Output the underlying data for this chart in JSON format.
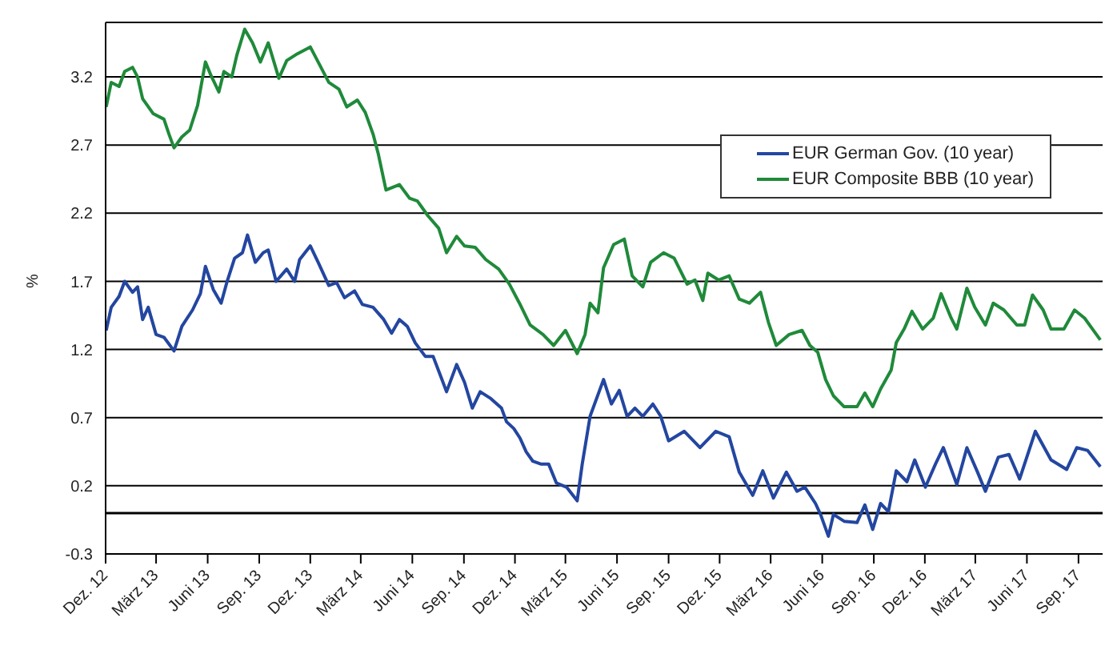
{
  "chart_data": {
    "type": "line",
    "ylabel": "%",
    "xlim": [
      "2012-12-01",
      "2017-10-14"
    ],
    "ylim": [
      -0.3,
      3.6
    ],
    "yticks": [
      -0.3,
      0.2,
      0.7,
      1.2,
      1.7,
      2.2,
      2.7,
      3.2
    ],
    "xticks": [
      {
        "value": "2012-12-01",
        "label": "Dez. 12"
      },
      {
        "value": "2013-03-01",
        "label": "März 13"
      },
      {
        "value": "2013-06-01",
        "label": "Juni 13"
      },
      {
        "value": "2013-09-01",
        "label": "Sep. 13"
      },
      {
        "value": "2013-12-01",
        "label": "Dez. 13"
      },
      {
        "value": "2014-03-01",
        "label": "März 14"
      },
      {
        "value": "2014-06-01",
        "label": "Juni 14"
      },
      {
        "value": "2014-09-01",
        "label": "Sep. 14"
      },
      {
        "value": "2014-12-01",
        "label": "Dez. 14"
      },
      {
        "value": "2015-03-01",
        "label": "März 15"
      },
      {
        "value": "2015-06-01",
        "label": "Juni 15"
      },
      {
        "value": "2015-09-01",
        "label": "Sep. 15"
      },
      {
        "value": "2015-12-01",
        "label": "Dez. 15"
      },
      {
        "value": "2016-03-01",
        "label": "März 16"
      },
      {
        "value": "2016-06-01",
        "label": "Juni 16"
      },
      {
        "value": "2016-09-01",
        "label": "Sep. 16"
      },
      {
        "value": "2016-12-01",
        "label": "Dez. 16"
      },
      {
        "value": "2017-03-01",
        "label": "März 17"
      },
      {
        "value": "2017-06-01",
        "label": "Juni 17"
      },
      {
        "value": "2017-09-01",
        "label": "Sep. 17"
      }
    ],
    "grid": "y",
    "legend": "top right",
    "marker": "none",
    "line_style": "solid",
    "ref_lines": [
      {
        "axis": "y",
        "value": 0,
        "color": "#000000"
      }
    ],
    "series": [
      {
        "name": "EUR German Gov. (10 year)",
        "color": "#2346a0",
        "x": [
          "2012-12-02",
          "2012-12-11",
          "2012-12-25",
          "2013-01-04",
          "2013-01-18",
          "2013-01-27",
          "2013-02-05",
          "2013-02-15",
          "2013-03-01",
          "2013-03-15",
          "2013-04-02",
          "2013-04-16",
          "2013-05-05",
          "2013-05-19",
          "2013-05-28",
          "2013-06-11",
          "2013-06-25",
          "2013-07-05",
          "2013-07-19",
          "2013-08-02",
          "2013-08-11",
          "2013-08-25",
          "2013-09-08",
          "2013-09-17",
          "2013-10-01",
          "2013-10-20",
          "2013-11-03",
          "2013-11-12",
          "2013-12-01",
          "2013-12-15",
          "2014-01-03",
          "2014-01-17",
          "2014-01-31",
          "2014-02-18",
          "2014-03-04",
          "2014-03-23",
          "2014-04-11",
          "2014-04-25",
          "2014-05-09",
          "2014-05-23",
          "2014-06-06",
          "2014-06-24",
          "2014-07-08",
          "2014-07-22",
          "2014-08-01",
          "2014-08-19",
          "2014-09-02",
          "2014-09-16",
          "2014-09-30",
          "2014-10-19",
          "2014-11-07",
          "2014-11-16",
          "2014-11-29",
          "2014-12-10",
          "2014-12-21",
          "2015-01-02",
          "2015-01-16",
          "2015-01-30",
          "2015-02-13",
          "2015-03-03",
          "2015-03-22",
          "2015-03-31",
          "2015-04-14",
          "2015-05-08",
          "2015-05-22",
          "2015-06-05",
          "2015-06-19",
          "2015-07-03",
          "2015-07-17",
          "2015-08-04",
          "2015-08-18",
          "2015-09-01",
          "2015-09-29",
          "2015-10-27",
          "2015-11-24",
          "2015-12-18",
          "2016-01-05",
          "2016-01-29",
          "2016-02-16",
          "2016-03-06",
          "2016-03-29",
          "2016-04-17",
          "2016-05-01",
          "2016-05-20",
          "2016-05-29",
          "2016-06-12",
          "2016-06-21",
          "2016-07-10",
          "2016-08-02",
          "2016-08-16",
          "2016-08-30",
          "2016-09-13",
          "2016-09-27",
          "2016-10-11",
          "2016-10-30",
          "2016-11-13",
          "2016-12-02",
          "2016-12-20",
          "2017-01-03",
          "2017-01-27",
          "2017-02-14",
          "2017-03-05",
          "2017-03-19",
          "2017-04-11",
          "2017-04-30",
          "2017-05-19",
          "2017-06-16",
          "2017-07-14",
          "2017-08-11",
          "2017-08-29",
          "2017-09-17",
          "2017-10-10"
        ],
        "values": [
          1.34,
          1.51,
          1.59,
          1.7,
          1.62,
          1.66,
          1.42,
          1.51,
          1.31,
          1.29,
          1.19,
          1.37,
          1.49,
          1.61,
          1.81,
          1.64,
          1.54,
          1.69,
          1.87,
          1.91,
          2.04,
          1.84,
          1.91,
          1.93,
          1.7,
          1.79,
          1.7,
          1.86,
          1.96,
          1.84,
          1.67,
          1.69,
          1.58,
          1.63,
          1.53,
          1.51,
          1.42,
          1.32,
          1.42,
          1.37,
          1.25,
          1.15,
          1.15,
          1.0,
          0.89,
          1.09,
          0.96,
          0.77,
          0.89,
          0.84,
          0.77,
          0.67,
          0.62,
          0.55,
          0.45,
          0.38,
          0.36,
          0.36,
          0.22,
          0.19,
          0.09,
          0.36,
          0.71,
          0.98,
          0.8,
          0.9,
          0.71,
          0.77,
          0.71,
          0.8,
          0.71,
          0.53,
          0.6,
          0.48,
          0.6,
          0.56,
          0.3,
          0.13,
          0.31,
          0.11,
          0.3,
          0.16,
          0.19,
          0.07,
          -0.01,
          -0.17,
          -0.01,
          -0.06,
          -0.07,
          0.06,
          -0.12,
          0.07,
          0.01,
          0.31,
          0.23,
          0.39,
          0.19,
          0.36,
          0.48,
          0.21,
          0.48,
          0.3,
          0.16,
          0.41,
          0.43,
          0.25,
          0.6,
          0.39,
          0.32,
          0.48,
          0.46,
          0.34
        ]
      },
      {
        "name": "EUR Composite BBB (10 year)",
        "color": "#1f8a3a",
        "x": [
          "2012-12-02",
          "2012-12-11",
          "2012-12-25",
          "2013-01-04",
          "2013-01-18",
          "2013-01-27",
          "2013-02-05",
          "2013-02-24",
          "2013-03-15",
          "2013-03-24",
          "2013-04-02",
          "2013-04-16",
          "2013-04-30",
          "2013-05-14",
          "2013-05-28",
          "2013-06-07",
          "2013-06-21",
          "2013-06-30",
          "2013-07-14",
          "2013-07-23",
          "2013-08-06",
          "2013-08-20",
          "2013-09-03",
          "2013-09-17",
          "2013-10-06",
          "2013-10-20",
          "2013-11-08",
          "2013-12-01",
          "2013-12-15",
          "2014-01-03",
          "2014-01-21",
          "2014-02-04",
          "2014-02-23",
          "2014-03-09",
          "2014-03-23",
          "2014-04-01",
          "2014-04-15",
          "2014-05-09",
          "2014-05-27",
          "2014-06-10",
          "2014-06-29",
          "2014-07-18",
          "2014-08-01",
          "2014-08-19",
          "2014-09-02",
          "2014-09-21",
          "2014-10-10",
          "2014-11-02",
          "2014-11-21",
          "2014-12-09",
          "2014-12-28",
          "2015-01-20",
          "2015-02-08",
          "2015-03-01",
          "2015-03-22",
          "2015-04-05",
          "2015-04-14",
          "2015-04-28",
          "2015-05-08",
          "2015-05-26",
          "2015-06-14",
          "2015-06-28",
          "2015-07-17",
          "2015-07-31",
          "2015-08-23",
          "2015-09-11",
          "2015-10-04",
          "2015-10-18",
          "2015-11-01",
          "2015-11-10",
          "2015-11-29",
          "2015-12-18",
          "2016-01-05",
          "2016-01-23",
          "2016-02-12",
          "2016-02-26",
          "2016-03-11",
          "2016-04-03",
          "2016-04-26",
          "2016-05-10",
          "2016-05-24",
          "2016-06-07",
          "2016-06-21",
          "2016-07-10",
          "2016-08-02",
          "2016-08-16",
          "2016-08-30",
          "2016-09-13",
          "2016-10-02",
          "2016-10-11",
          "2016-10-25",
          "2016-11-08",
          "2016-11-27",
          "2016-12-16",
          "2016-12-30",
          "2017-01-17",
          "2017-01-27",
          "2017-02-14",
          "2017-02-28",
          "2017-03-19",
          "2017-04-02",
          "2017-04-21",
          "2017-05-14",
          "2017-05-28",
          "2017-06-11",
          "2017-06-30",
          "2017-07-14",
          "2017-08-06",
          "2017-08-25",
          "2017-09-12",
          "2017-09-26",
          "2017-10-10"
        ],
        "values": [
          2.98,
          3.16,
          3.13,
          3.24,
          3.27,
          3.2,
          3.04,
          2.93,
          2.89,
          2.78,
          2.68,
          2.76,
          2.81,
          2.99,
          3.31,
          3.21,
          3.09,
          3.24,
          3.2,
          3.36,
          3.55,
          3.45,
          3.31,
          3.45,
          3.19,
          3.32,
          3.37,
          3.42,
          3.31,
          3.16,
          3.11,
          2.98,
          3.03,
          2.94,
          2.78,
          2.64,
          2.37,
          2.41,
          2.31,
          2.29,
          2.18,
          2.09,
          1.91,
          2.03,
          1.96,
          1.95,
          1.86,
          1.79,
          1.68,
          1.54,
          1.38,
          1.31,
          1.23,
          1.34,
          1.17,
          1.31,
          1.54,
          1.47,
          1.8,
          1.97,
          2.01,
          1.74,
          1.66,
          1.84,
          1.91,
          1.87,
          1.68,
          1.71,
          1.56,
          1.76,
          1.71,
          1.74,
          1.57,
          1.54,
          1.62,
          1.4,
          1.23,
          1.31,
          1.34,
          1.23,
          1.18,
          0.98,
          0.86,
          0.78,
          0.78,
          0.88,
          0.78,
          0.91,
          1.05,
          1.25,
          1.35,
          1.48,
          1.35,
          1.43,
          1.61,
          1.43,
          1.35,
          1.65,
          1.51,
          1.38,
          1.54,
          1.49,
          1.38,
          1.38,
          1.6,
          1.49,
          1.35,
          1.35,
          1.49,
          1.43,
          1.35,
          1.27
        ]
      }
    ]
  }
}
